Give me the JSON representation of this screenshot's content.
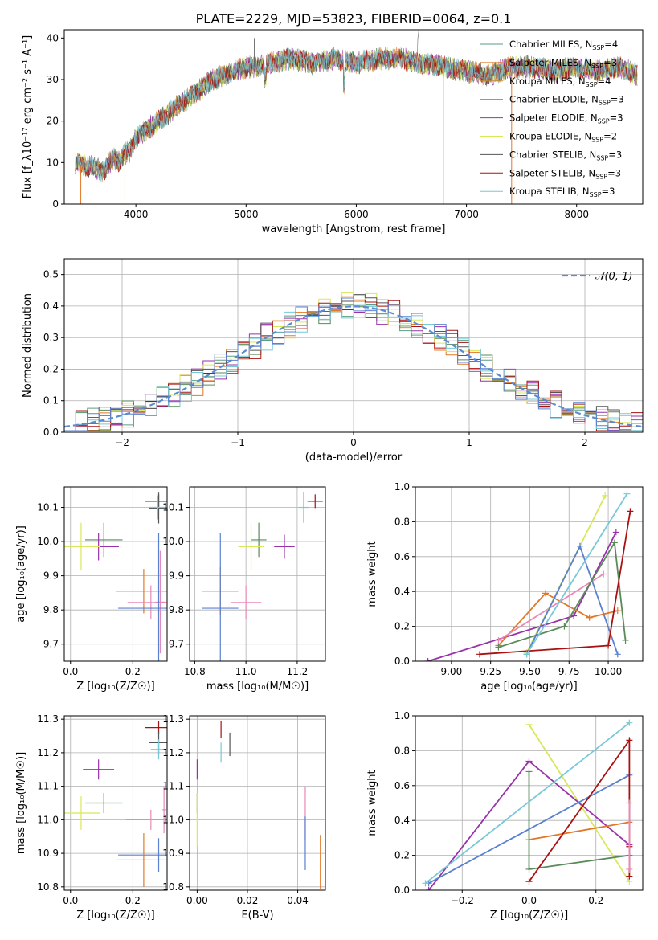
{
  "figure_title": "PLATE=2229, MJD=53823, FIBERID=0064, z=0.1",
  "colors": {
    "ChabrierMILES": "#5a9e84",
    "SalpeterMILES": "#e07828",
    "KroupaMILES": "#c08a28",
    "ChabrierELODIE": "#5a8a5a",
    "SalpeterELODIE": "#9932aa",
    "KroupaELODIE": "#d8e858",
    "ChabrierSTELIB": "#555555",
    "SalpeterSTELIB": "#aa1111",
    "KroupaSTELIB": "#78c8d8",
    "pink": "#e888b8",
    "blue": "#5a80d0",
    "normal": "#5a8ad0"
  },
  "chart_data": [
    {
      "id": "spectrum",
      "type": "line",
      "xlabel": "wavelength [Angstrom, rest frame]",
      "ylabel": "Flux [f_λ10⁻¹⁷ erg cm⁻² s⁻¹ A⁻¹]",
      "xlim": [
        3350,
        8600
      ],
      "ylim": [
        0,
        42
      ],
      "xticks": [
        4000,
        5000,
        6000,
        7000,
        8000
      ],
      "yticks": [
        0,
        10,
        20,
        30,
        40
      ],
      "grid": false,
      "legend_position": "right",
      "continuum": {
        "x": [
          3450,
          3600,
          3700,
          3800,
          3850,
          3900,
          3950,
          4000,
          4100,
          4200,
          4300,
          4400,
          4500,
          4600,
          4700,
          4800,
          4900,
          5000,
          5100,
          5200,
          5400,
          5600,
          5800,
          6000,
          6200,
          6400,
          6600,
          6800,
          7000,
          7200,
          7400,
          7600,
          7800,
          8000,
          8200,
          8400,
          8550
        ],
        "y": [
          10,
          9,
          8,
          11,
          10,
          12,
          13,
          16,
          18,
          20,
          22,
          24,
          26,
          28,
          30,
          31,
          32,
          33,
          33,
          34,
          35,
          34,
          35,
          34,
          35,
          35,
          34,
          33,
          32,
          31,
          33,
          33,
          32,
          33,
          32,
          33,
          31
        ]
      },
      "legend": [
        {
          "label": "Chabrier MILES, N",
          "sub": "SSP",
          "value": "=4",
          "color_key": "ChabrierMILES"
        },
        {
          "label": "Salpeter MILES, N",
          "sub": "SSP",
          "value": "=3",
          "color_key": "SalpeterMILES"
        },
        {
          "label": "Kroupa MILES, N",
          "sub": "SSP",
          "value": "=4",
          "color_key": "KroupaMILES"
        },
        {
          "label": "Chabrier ELODIE, N",
          "sub": "SSP",
          "value": "=3",
          "color_key": "ChabrierELODIE"
        },
        {
          "label": "Salpeter ELODIE, N",
          "sub": "SSP",
          "value": "=3",
          "color_key": "SalpeterELODIE"
        },
        {
          "label": "Kroupa ELODIE, N",
          "sub": "SSP",
          "value": "=2",
          "color_key": "KroupaELODIE"
        },
        {
          "label": "Chabrier STELIB, N",
          "sub": "SSP",
          "value": "=3",
          "color_key": "ChabrierSTELIB"
        },
        {
          "label": "Salpeter STELIB, N",
          "sub": "SSP",
          "value": "=3",
          "color_key": "SalpeterSTELIB"
        },
        {
          "label": "Kroupa STELIB, N",
          "sub": "SSP",
          "value": "=3",
          "color_key": "KroupaSTELIB"
        }
      ]
    },
    {
      "id": "residuals",
      "type": "line",
      "xlabel": "(data-model)/error",
      "ylabel": "Normed distribution",
      "xlim": [
        -2.5,
        2.5
      ],
      "ylim": [
        0,
        0.55
      ],
      "xticks": [
        -2,
        -1,
        0,
        1,
        2
      ],
      "yticks": [
        0.0,
        0.1,
        0.2,
        0.3,
        0.4,
        0.5
      ],
      "grid": true,
      "legend_position": "top-right",
      "normal_label": "𝒩(0, 1)",
      "hist_colors": [
        "ChabrierMILES",
        "SalpeterMILES",
        "ChabrierELODIE",
        "SalpeterELODIE",
        "KroupaELODIE",
        "ChabrierSTELIB",
        "SalpeterSTELIB",
        "KroupaSTELIB",
        "blue"
      ]
    },
    {
      "id": "age_vs_Z",
      "type": "scatter",
      "xlabel": "Z [log₁₀(Z/Z☉)]",
      "ylabel": "age  [log₁₀(age/yr)]",
      "xlim": [
        -0.02,
        0.31
      ],
      "ylim": [
        9.65,
        10.16
      ],
      "xticks": [
        0.0,
        0.2
      ],
      "yticks": [
        9.7,
        9.8,
        9.9,
        10.0,
        10.1
      ],
      "grid": true,
      "points": [
        {
          "x": 0.283,
          "y": 10.118,
          "xerr": 0.045,
          "yerr": 0.02,
          "color_key": "SalpeterSTELIB"
        },
        {
          "x": 0.283,
          "y": 10.098,
          "xerr": 0.03,
          "yerr": 0.045,
          "color_key": "ChabrierSTELIB"
        },
        {
          "x": 0.28,
          "y": 10.1,
          "xerr": 0.025,
          "yerr": 0.035,
          "color_key": "KroupaSTELIB"
        },
        {
          "x": 0.107,
          "y": 10.005,
          "xerr": 0.06,
          "yerr": 0.05,
          "color_key": "ChabrierELODIE"
        },
        {
          "x": 0.09,
          "y": 9.985,
          "xerr": 0.065,
          "yerr": 0.04,
          "color_key": "SalpeterELODIE"
        },
        {
          "x": 0.034,
          "y": 9.985,
          "xerr": 0.06,
          "yerr": 0.07,
          "color_key": "KroupaELODIE"
        },
        {
          "x": 0.235,
          "y": 9.855,
          "xerr": 0.09,
          "yerr": 0.065,
          "color_key": "SalpeterMILES"
        },
        {
          "x": 0.258,
          "y": 9.822,
          "xerr": 0.075,
          "yerr": 0.05,
          "color_key": "pink"
        },
        {
          "x": 0.288,
          "y": 9.823,
          "xerr": 0.015,
          "yerr": 0.15,
          "color_key": "pink"
        },
        {
          "x": 0.283,
          "y": 9.805,
          "xerr": 0.13,
          "yerr": 0.22,
          "color_key": "blue"
        }
      ]
    },
    {
      "id": "age_vs_mass",
      "type": "scatter",
      "xlabel": "mass [log₁₀(M/M☉)]",
      "ylabel": "",
      "xlim": [
        10.78,
        11.31
      ],
      "ylim": [
        9.65,
        10.16
      ],
      "xticks": [
        10.8,
        11.0,
        11.2
      ],
      "yticks": [
        9.7,
        9.8,
        9.9,
        10.0,
        10.1
      ],
      "grid": true,
      "points": [
        {
          "x": 11.27,
          "y": 10.118,
          "xerr": 0.03,
          "yerr": 0.02,
          "color_key": "SalpeterSTELIB"
        },
        {
          "x": 11.225,
          "y": 10.1,
          "xerr": 0.02,
          "yerr": 0.045,
          "color_key": "KroupaSTELIB"
        },
        {
          "x": 11.05,
          "y": 10.005,
          "xerr": 0.03,
          "yerr": 0.05,
          "color_key": "ChabrierELODIE"
        },
        {
          "x": 11.15,
          "y": 9.985,
          "xerr": 0.04,
          "yerr": 0.035,
          "color_key": "SalpeterELODIE"
        },
        {
          "x": 11.02,
          "y": 9.985,
          "xerr": 0.05,
          "yerr": 0.07,
          "color_key": "KroupaELODIE"
        },
        {
          "x": 10.9,
          "y": 9.855,
          "xerr": 0.07,
          "yerr": 0.07,
          "color_key": "SalpeterMILES"
        },
        {
          "x": 11.0,
          "y": 9.822,
          "xerr": 0.06,
          "yerr": 0.05,
          "color_key": "pink"
        },
        {
          "x": 10.9,
          "y": 9.805,
          "xerr": 0.07,
          "yerr": 0.22,
          "color_key": "blue"
        }
      ]
    },
    {
      "id": "weight_vs_age",
      "type": "line",
      "xlabel": "age  [log₁₀(age/yr)]",
      "ylabel": "mass weight",
      "xlim": [
        8.77,
        10.22
      ],
      "ylim": [
        0,
        1
      ],
      "xticks": [
        9.0,
        9.25,
        9.5,
        9.75,
        10.0
      ],
      "yticks": [
        0.0,
        0.2,
        0.4,
        0.6,
        0.8,
        1.0
      ],
      "grid": true,
      "series": [
        {
          "color_key": "SalpeterELODIE",
          "x": [
            8.85,
            9.78,
            10.05
          ],
          "y": [
            0.0,
            0.26,
            0.74
          ]
        },
        {
          "color_key": "SalpeterMILES",
          "x": [
            9.3,
            9.6,
            9.88,
            10.06
          ],
          "y": [
            0.09,
            0.39,
            0.25,
            0.29
          ]
        },
        {
          "color_key": "pink",
          "x": [
            9.3,
            9.97
          ],
          "y": [
            0.12,
            0.5
          ]
        },
        {
          "color_key": "KroupaELODIE",
          "x": [
            9.48,
            9.98
          ],
          "y": [
            0.05,
            0.95
          ]
        },
        {
          "color_key": "blue",
          "x": [
            9.48,
            9.82,
            10.06
          ],
          "y": [
            0.04,
            0.66,
            0.04
          ]
        },
        {
          "color_key": "ChabrierELODIE",
          "x": [
            9.3,
            9.72,
            10.04,
            10.11
          ],
          "y": [
            0.08,
            0.2,
            0.68,
            0.12
          ]
        },
        {
          "color_key": "SalpeterSTELIB",
          "x": [
            9.18,
            10.0,
            10.14
          ],
          "y": [
            0.04,
            0.09,
            0.86
          ]
        },
        {
          "color_key": "KroupaSTELIB",
          "x": [
            9.48,
            10.12
          ],
          "y": [
            0.04,
            0.96
          ]
        }
      ]
    },
    {
      "id": "mass_vs_Z",
      "type": "scatter",
      "xlabel": "Z [log₁₀(Z/Z☉)]",
      "ylabel": "mass [log₁₀(M/M☉)]",
      "xlim": [
        -0.02,
        0.31
      ],
      "ylim": [
        10.79,
        11.31
      ],
      "xticks": [
        0.0,
        0.2
      ],
      "yticks": [
        10.8,
        10.9,
        11.0,
        11.1,
        11.2,
        11.3
      ],
      "grid": true,
      "points": [
        {
          "x": 0.283,
          "y": 11.275,
          "xerr": 0.045,
          "yerr": 0.02,
          "color_key": "SalpeterSTELIB"
        },
        {
          "x": 0.283,
          "y": 11.23,
          "xerr": 0.03,
          "yerr": 0.035,
          "color_key": "ChabrierSTELIB"
        },
        {
          "x": 0.283,
          "y": 11.21,
          "xerr": 0.025,
          "yerr": 0.03,
          "color_key": "KroupaSTELIB"
        },
        {
          "x": 0.09,
          "y": 11.15,
          "xerr": 0.05,
          "yerr": 0.03,
          "color_key": "SalpeterELODIE"
        },
        {
          "x": 0.107,
          "y": 11.05,
          "xerr": 0.06,
          "yerr": 0.03,
          "color_key": "ChabrierELODIE"
        },
        {
          "x": 0.034,
          "y": 11.02,
          "xerr": 0.06,
          "yerr": 0.05,
          "color_key": "KroupaELODIE"
        },
        {
          "x": 0.258,
          "y": 11.0,
          "xerr": 0.08,
          "yerr": 0.03,
          "color_key": "pink"
        },
        {
          "x": 0.3,
          "y": 11.03,
          "xerr": 0.005,
          "yerr": 0.07,
          "color_key": "pink"
        },
        {
          "x": 0.283,
          "y": 10.895,
          "xerr": 0.13,
          "yerr": 0.05,
          "color_key": "blue"
        },
        {
          "x": 0.235,
          "y": 10.88,
          "xerr": 0.09,
          "yerr": 0.08,
          "color_key": "SalpeterMILES"
        }
      ]
    },
    {
      "id": "mass_vs_ebv",
      "type": "scatter",
      "xlabel": "E(B-V)",
      "ylabel": "",
      "xlim": [
        -0.003,
        0.051
      ],
      "ylim": [
        10.79,
        11.31
      ],
      "xticks": [
        0.0,
        0.02,
        0.04
      ],
      "yticks": [
        10.8,
        10.9,
        11.0,
        11.1,
        11.2,
        11.3
      ],
      "grid": true,
      "points": [
        {
          "x": 0.0095,
          "y": 11.27,
          "xerr": 0,
          "yerr": 0.025,
          "color_key": "SalpeterSTELIB"
        },
        {
          "x": 0.013,
          "y": 11.225,
          "xerr": 0,
          "yerr": 0.035,
          "color_key": "ChabrierSTELIB"
        },
        {
          "x": 0.0095,
          "y": 11.2,
          "xerr": 0,
          "yerr": 0.03,
          "color_key": "KroupaSTELIB"
        },
        {
          "x": 0.0,
          "y": 11.15,
          "xerr": 0,
          "yerr": 0.03,
          "color_key": "SalpeterELODIE"
        },
        {
          "x": 0.0,
          "y": 11.05,
          "xerr": 0,
          "yerr": 0.03,
          "color_key": "ChabrierELODIE"
        },
        {
          "x": 0.0,
          "y": 11.0,
          "xerr": 0,
          "yerr": 0.08,
          "color_key": "KroupaELODIE"
        },
        {
          "x": 0.043,
          "y": 11.02,
          "xerr": 0,
          "yerr": 0.08,
          "color_key": "pink"
        },
        {
          "x": 0.043,
          "y": 10.93,
          "xerr": 0,
          "yerr": 0.08,
          "color_key": "blue"
        },
        {
          "x": 0.049,
          "y": 10.875,
          "xerr": 0,
          "yerr": 0.08,
          "color_key": "SalpeterMILES"
        }
      ]
    },
    {
      "id": "weight_vs_Z",
      "type": "line",
      "xlabel": "Z [log₁₀(Z/Z☉)]",
      "ylabel": "mass weight",
      "xlim": [
        -0.34,
        0.34
      ],
      "ylim": [
        0,
        1
      ],
      "xticks": [
        -0.2,
        0.0,
        0.2
      ],
      "yticks": [
        0.0,
        0.2,
        0.4,
        0.6,
        0.8,
        1.0
      ],
      "grid": true,
      "series": [
        {
          "color_key": "KroupaELODIE",
          "x": [
            0.0,
            0.3
          ],
          "y": [
            0.95,
            0.05
          ]
        },
        {
          "color_key": "SalpeterELODIE",
          "x": [
            -0.3,
            0.0,
            0.3
          ],
          "y": [
            0.0,
            0.74,
            0.26
          ]
        },
        {
          "color_key": "ChabrierELODIE",
          "x": [
            0.0,
            0.0,
            0.3
          ],
          "y": [
            0.68,
            0.12,
            0.2
          ]
        },
        {
          "color_key": "SalpeterMILES",
          "x": [
            0.0,
            0.3
          ],
          "y": [
            0.29,
            0.39
          ]
        },
        {
          "color_key": "blue",
          "x": [
            -0.3,
            0.3
          ],
          "y": [
            0.04,
            0.66
          ]
        },
        {
          "color_key": "SalpeterSTELIB",
          "x": [
            0.0,
            0.3,
            0.3,
            0.3
          ],
          "y": [
            0.05,
            0.86,
            0.25,
            0.08
          ]
        },
        {
          "color_key": "KroupaSTELIB",
          "x": [
            -0.31,
            0.3
          ],
          "y": [
            0.04,
            0.96
          ]
        },
        {
          "color_key": "pink",
          "x": [
            0.3,
            0.3
          ],
          "y": [
            0.5,
            0.12
          ]
        }
      ]
    }
  ]
}
